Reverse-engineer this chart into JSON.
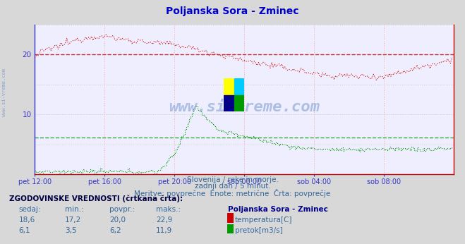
{
  "title": "Poljanska Sora - Zminec",
  "title_color": "#0000cc",
  "bg_color": "#d8d8d8",
  "plot_bg_color": "#eeeeff",
  "grid_color_h": "#cccccc",
  "grid_color_v": "#ffaaaa",
  "axis_color": "#3333cc",
  "tick_color": "#3333cc",
  "watermark_text": "www.si-vreme.com",
  "watermark_color": "#6688bb",
  "subtitle_lines": [
    "Slovenija / reke in morje.",
    "zadnji dan / 5 minut.",
    "Meritve: povprečne  Enote: metrične  Črta: povprečje"
  ],
  "subtitle_color": "#336699",
  "xlim": [
    0,
    288
  ],
  "ylim": [
    0,
    25
  ],
  "yticks": [
    10,
    20
  ],
  "xtick_labels": [
    "pet 12:00",
    "pet 16:00",
    "pet 20:00",
    "sob 00:00",
    "sob 04:00",
    "sob 08:00"
  ],
  "xtick_positions": [
    0,
    48,
    96,
    144,
    192,
    240
  ],
  "temp_color": "#cc0000",
  "flow_color": "#009900",
  "avg_temp": 20.0,
  "avg_flow": 6.2,
  "table_header": "ZGODOVINSKE VREDNOSTI (črtkana črta):",
  "table_cols": [
    "sedaj:",
    "min.:",
    "povpr.:",
    "maks.:"
  ],
  "temp_vals": [
    18.6,
    17.2,
    20.0,
    22.9
  ],
  "flow_vals": [
    6.1,
    3.5,
    6.2,
    11.9
  ],
  "temp_label": "temperatura[C]",
  "flow_label": "pretok[m3/s]",
  "station_label": "Poljanska Sora - Zminec",
  "n_points": 288
}
